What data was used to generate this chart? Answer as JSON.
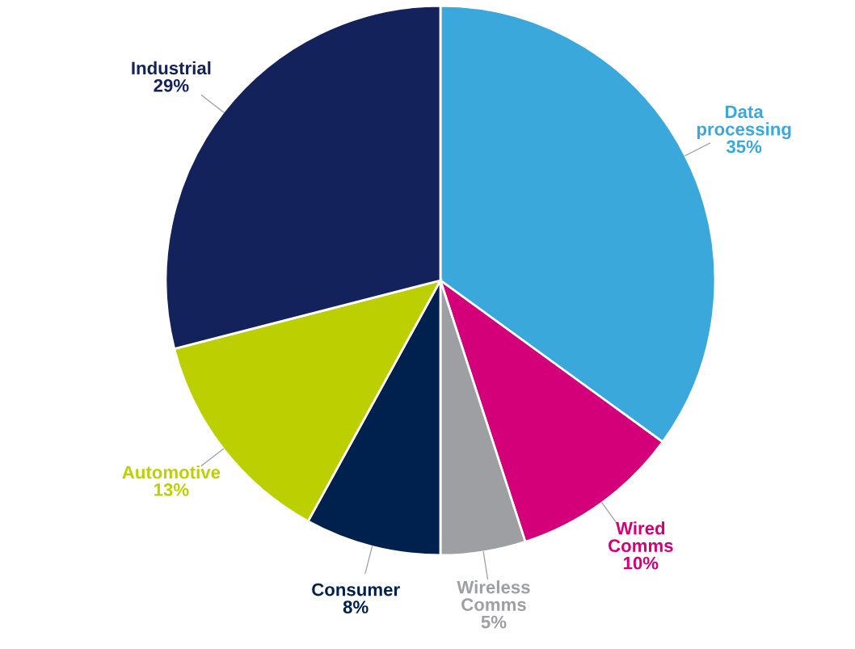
{
  "chart_data": {
    "type": "pie",
    "categories": [
      "Data processing",
      "Wired Comms",
      "Wireless Comms",
      "Consumer",
      "Automotive",
      "Industrial"
    ],
    "values": [
      35,
      10,
      5,
      8,
      13,
      29
    ],
    "value_labels": [
      "35%",
      "10%",
      "5%",
      "8%",
      "13%",
      "29%"
    ],
    "colors": [
      "#3ba8db",
      "#d4007a",
      "#9d9fa2",
      "#00204e",
      "#bccf00",
      "#14225c"
    ]
  }
}
